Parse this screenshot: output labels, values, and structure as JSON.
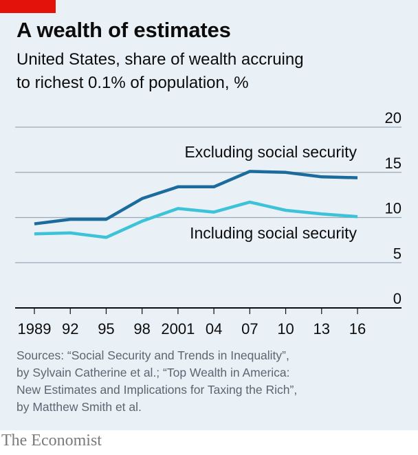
{
  "header": {
    "title": "A wealth of estimates",
    "subtitle_line1": "United States, share of wealth accruing",
    "subtitle_line2": "to richest 0.1% of population, %"
  },
  "sources": {
    "line1": "Sources: “Social Security and Trends in Inequality”,",
    "line2": "by Sylvain Catherine et al.; “Top Wealth in America:",
    "line3": "New Estimates and Implications for Taxing the Rich”,",
    "line4": "by Matthew Smith et al."
  },
  "footer": {
    "brand": "The Economist"
  },
  "colors": {
    "background": "#e9f0f6",
    "brand_red": "#e3120b",
    "excluding": "#1b6b9c",
    "including": "#3cc3d8",
    "grid": "#9aa9b6",
    "axis": "#0c0c0c"
  },
  "chart_data": {
    "type": "line",
    "x": [
      1989,
      1992,
      1995,
      1998,
      2001,
      2004,
      2007,
      2010,
      2013,
      2016
    ],
    "x_tick_labels": [
      "1989",
      "92",
      "95",
      "98",
      "2001",
      "04",
      "07",
      "10",
      "13",
      "16"
    ],
    "y_ticks": [
      0,
      5,
      10,
      15,
      20
    ],
    "ylim": [
      0,
      20
    ],
    "grid": true,
    "y_axis_side": "right",
    "series": [
      {
        "name": "Excluding social security",
        "color": "#1b6b9c",
        "values": [
          9.3,
          9.8,
          9.8,
          12.1,
          13.4,
          13.4,
          15.1,
          15.0,
          14.5,
          14.4
        ]
      },
      {
        "name": "Including social security",
        "color": "#3cc3d8",
        "values": [
          8.2,
          8.3,
          7.8,
          9.6,
          11.0,
          10.6,
          11.7,
          10.8,
          10.4,
          10.1
        ]
      }
    ]
  }
}
